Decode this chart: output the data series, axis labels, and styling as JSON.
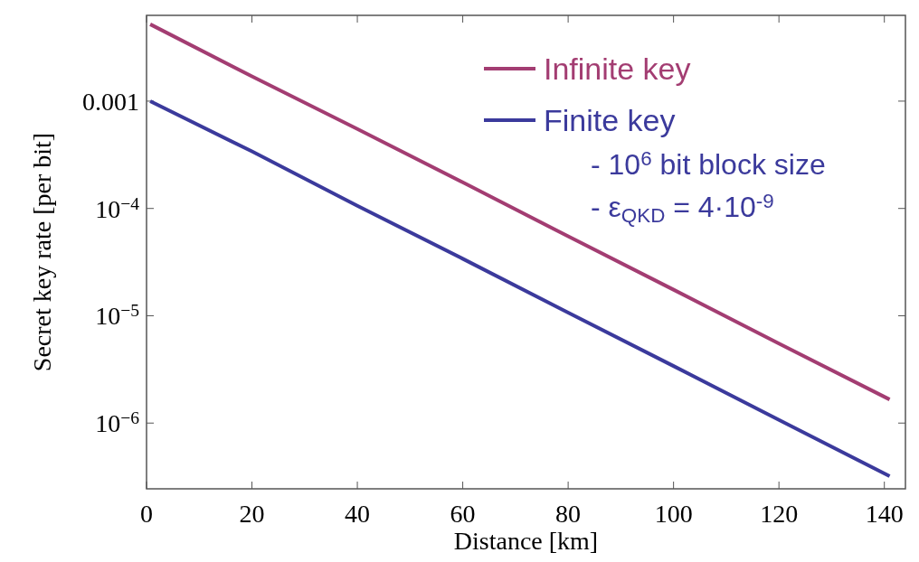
{
  "chart_data": {
    "type": "line",
    "xlabel": "Distance [km]",
    "ylabel": "Secret key rate [per bit]",
    "log": true,
    "xlim": [
      0,
      144
    ],
    "ylim": [
      2.44e-07,
      0.0063
    ],
    "xticks": [
      0,
      20,
      40,
      60,
      80,
      100,
      120,
      140
    ],
    "yticks": [
      {
        "value": 0.001,
        "label": "0.001"
      },
      {
        "value": 0.0001,
        "label": "10$^{−4}$"
      },
      {
        "value": 1e-05,
        "label": "10$^{−5}$"
      },
      {
        "value": 1e-06,
        "label": "10$^{−6}$"
      }
    ],
    "legend": "top right",
    "grid": false,
    "series": [
      {
        "name": "Infinite key",
        "color": "#a33d72",
        "x": [
          0.7,
          20,
          40,
          60,
          80,
          100,
          120,
          141
        ],
        "values": [
          0.0052,
          0.0017,
          0.00055,
          0.000175,
          5.5e-05,
          1.75e-05,
          5.5e-06,
          1.66e-06
        ]
      },
      {
        "name": "Finite key",
        "color": "#3b3a9c",
        "x": [
          0.7,
          20,
          40,
          60,
          80,
          100,
          120,
          141
        ],
        "values": [
          0.001,
          0.00034,
          0.000106,
          3.4e-05,
          1.07e-05,
          3.4e-06,
          1.07e-06,
          3.2e-07
        ]
      }
    ],
    "annotations": [
      "- 10$^{6}$ bit block size",
      "- ε$_{QKD}$ = 4·10$^{-9}$"
    ]
  }
}
